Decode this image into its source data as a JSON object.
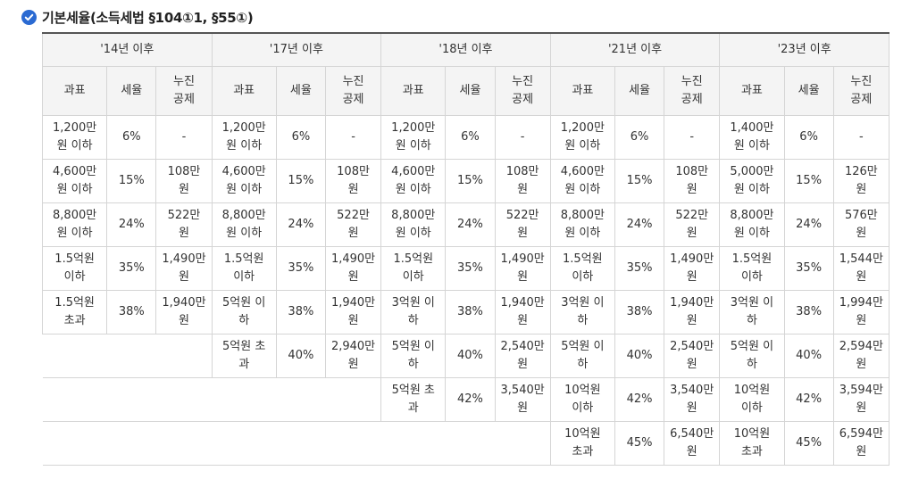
{
  "title": "기본세율(소득세법 §104①1, §55①)",
  "columns": {
    "years": [
      "'14년 이후",
      "'17년 이후",
      "'18년 이후",
      "'21년 이후",
      "'23년 이후"
    ],
    "sub": [
      "과표",
      "세율",
      "누진\n공제"
    ]
  },
  "rows": [
    [
      "1,200만\n원 이하",
      "6%",
      "-",
      "1,200만\n원 이하",
      "6%",
      "-",
      "1,200만\n원 이하",
      "6%",
      "-",
      "1,200만\n원 이하",
      "6%",
      "-",
      "1,400만\n원 이하",
      "6%",
      "-"
    ],
    [
      "4,600만\n원 이하",
      "15%",
      "108만\n원",
      "4,600만\n원 이하",
      "15%",
      "108만\n원",
      "4,600만\n원 이하",
      "15%",
      "108만\n원",
      "4,600만\n원 이하",
      "15%",
      "108만\n원",
      "5,000만\n원 이하",
      "15%",
      "126만\n원"
    ],
    [
      "8,800만\n원 이하",
      "24%",
      "522만\n원",
      "8,800만\n원 이하",
      "24%",
      "522만\n원",
      "8,800만\n원 이하",
      "24%",
      "522만\n원",
      "8,800만\n원 이하",
      "24%",
      "522만\n원",
      "8,800만\n원 이하",
      "24%",
      "576만\n원"
    ],
    [
      "1.5억원\n이하",
      "35%",
      "1,490만\n원",
      "1.5억원\n이하",
      "35%",
      "1,490만\n원",
      "1.5억원\n이하",
      "35%",
      "1,490만\n원",
      "1.5억원\n이하",
      "35%",
      "1,490만\n원",
      "1.5억원\n이하",
      "35%",
      "1,544만\n원"
    ],
    [
      "1.5억원\n초과",
      "38%",
      "1,940만\n원",
      "5억원 이\n하",
      "38%",
      "1,940만\n원",
      "3억원 이\n하",
      "38%",
      "1,940만\n원",
      "3억원 이\n하",
      "38%",
      "1,940만\n원",
      "3억원 이\n하",
      "38%",
      "1,994만\n원"
    ],
    [
      null,
      null,
      null,
      "5억원 초\n과",
      "40%",
      "2,940만\n원",
      "5억원 이\n하",
      "40%",
      "2,540만\n원",
      "5억원 이\n하",
      "40%",
      "2,540만\n원",
      "5억원 이\n하",
      "40%",
      "2,594만\n원"
    ],
    [
      null,
      null,
      null,
      null,
      null,
      null,
      "5억원 초\n과",
      "42%",
      "3,540만\n원",
      "10억원\n이하",
      "42%",
      "3,540만\n원",
      "10억원\n이하",
      "42%",
      "3,594만\n원"
    ],
    [
      null,
      null,
      null,
      null,
      null,
      null,
      null,
      null,
      null,
      "10억원\n초과",
      "45%",
      "6,540만\n원",
      "10억원\n초과",
      "45%",
      "6,594만\n원"
    ]
  ]
}
